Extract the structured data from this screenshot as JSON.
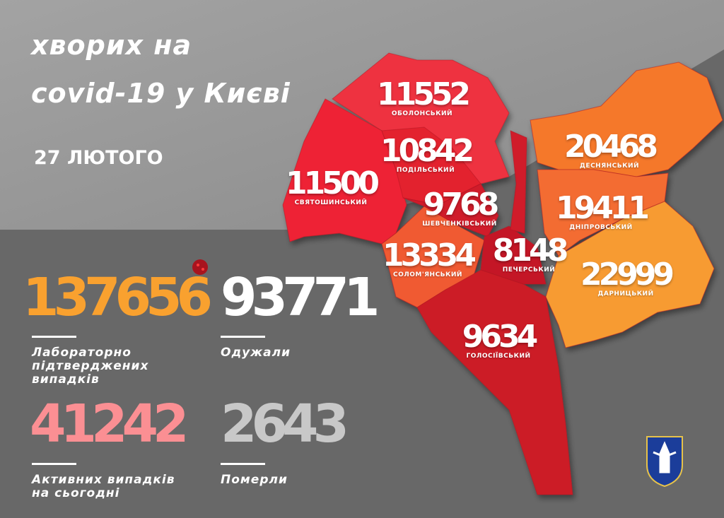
{
  "title": {
    "line1": "хворих на",
    "line2": "covid-19 у Києві"
  },
  "date": "27 ЛЮТОГО",
  "stats": [
    {
      "value": "137656",
      "label": [
        "Лабораторно",
        "підтверджених",
        "випадків"
      ],
      "color": "#f9a12f"
    },
    {
      "value": "93771",
      "label": [
        "Одужали"
      ],
      "color": "#ffffff"
    },
    {
      "value": "41242",
      "label": [
        "Активних випадків",
        "на сьогодні"
      ],
      "color": "#fb8f93"
    },
    {
      "value": "2643",
      "label": [
        "Померли"
      ],
      "color": "#c8c8c8"
    }
  ],
  "districts": [
    {
      "name": "ОБОЛОНСЬКИЙ",
      "value": "11552",
      "color": "#ee3340"
    },
    {
      "name": "ПОДІЛЬСЬКИЙ",
      "value": "10842",
      "color": "#e3202f"
    },
    {
      "name": "СВЯТОШИНСЬКИЙ",
      "value": "11500",
      "color": "#ee2234"
    },
    {
      "name": "ШЕВЧЕНКІВСЬКИЙ",
      "value": "9768",
      "color": "#d01a2a"
    },
    {
      "name": "СОЛОМ'ЯНСЬКИЙ",
      "value": "13334",
      "color": "#f05a30"
    },
    {
      "name": "ПЕЧЕРСЬКИЙ",
      "value": "8148",
      "color": "#c41927"
    },
    {
      "name": "ГОЛОСІЇВСЬКИЙ",
      "value": "9634",
      "color": "#cc1b26"
    },
    {
      "name": "ДЕСНЯНСЬКИЙ",
      "value": "20468",
      "color": "#f5782a"
    },
    {
      "name": "ДНІПРОВСЬКИЙ",
      "value": "19411",
      "color": "#f36c30"
    },
    {
      "name": "ДАРНИЦЬКИЙ",
      "value": "22999",
      "color": "#f79b30"
    }
  ]
}
